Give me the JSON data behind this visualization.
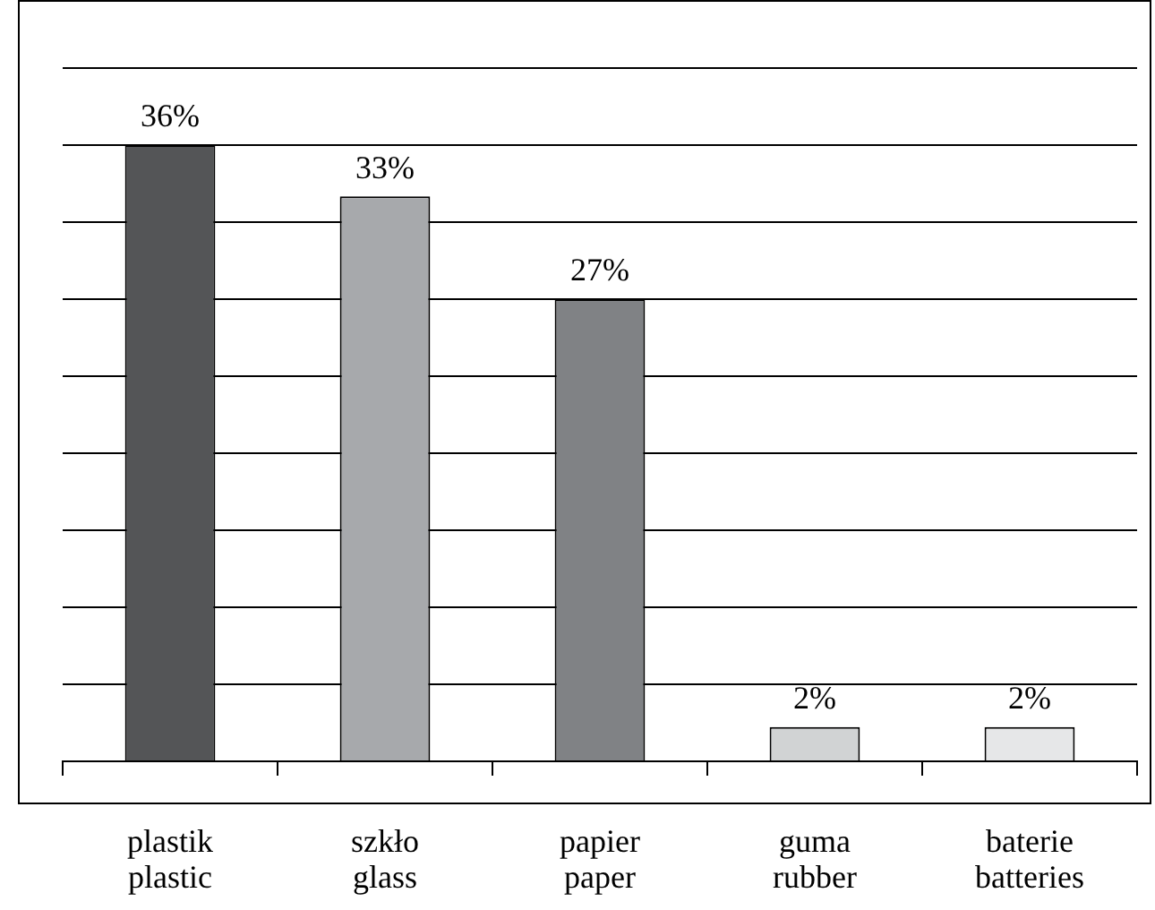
{
  "chart_data": {
    "type": "bar",
    "categories": [
      "plastik\nplastic",
      "szkło\nglass",
      "papier\npaper",
      "guma\nrubber",
      "baterie\nbatteries"
    ],
    "values": [
      36,
      33,
      27,
      2,
      2
    ],
    "value_labels": [
      "36%",
      "33%",
      "27%",
      "2%",
      "2%"
    ],
    "colors": [
      "#545557",
      "#a7a9ac",
      "#808285",
      "#d1d3d4",
      "#e6e7e8"
    ],
    "ylim": [
      0,
      40.5
    ],
    "yticks": [
      {
        "value": 0,
        "label": null
      },
      {
        "value": 4.5,
        "label": null
      },
      {
        "value": 9,
        "label": null
      },
      {
        "value": 13.5,
        "label": null
      },
      {
        "value": 18,
        "label": null
      },
      {
        "value": 22.5,
        "label": null
      },
      {
        "value": 27,
        "label": null
      },
      {
        "value": 31.5,
        "label": null
      },
      {
        "value": 36,
        "label": null
      },
      {
        "value": 40.5,
        "label": null
      }
    ],
    "grid": "y",
    "legend": false
  }
}
